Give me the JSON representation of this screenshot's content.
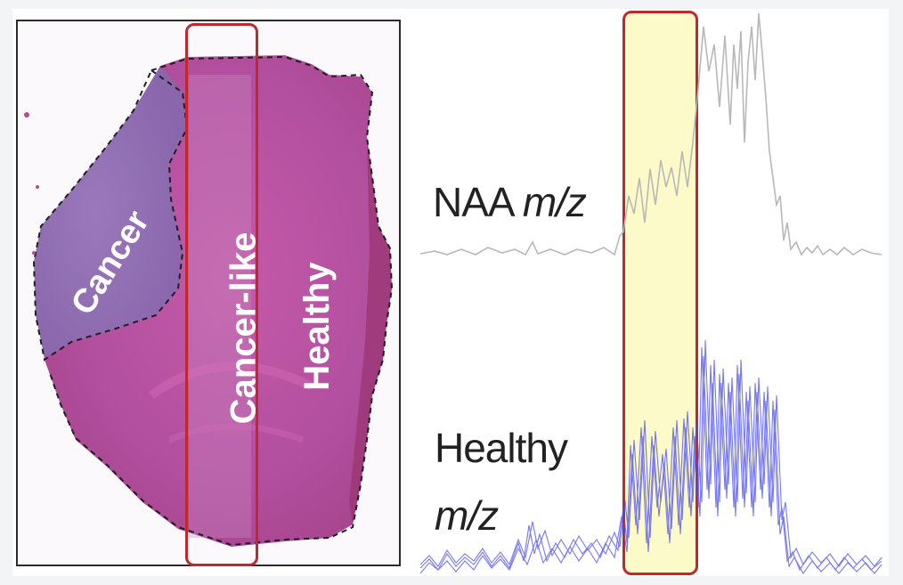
{
  "tissue": {
    "regions": {
      "cancer_label": "Cancer",
      "cancer_like_label": "Cancer-like",
      "healthy_label": "Healthy"
    },
    "colors": {
      "cancer_region": "#8f6eb5",
      "healthy_region": "#b04c9c",
      "roi_outline": "#c0282d"
    }
  },
  "spectra": {
    "naa_label_main": "NAA ",
    "naa_label_italic": "m/z",
    "healthy_label_line1": "Healthy",
    "healthy_label_line2": "m/z",
    "colors": {
      "naa_trace": "#b8b8b8",
      "healthy_trace": "#4a4cf0",
      "highlight_fill": "#fdf9ba",
      "highlight_border": "#c0282d"
    }
  }
}
